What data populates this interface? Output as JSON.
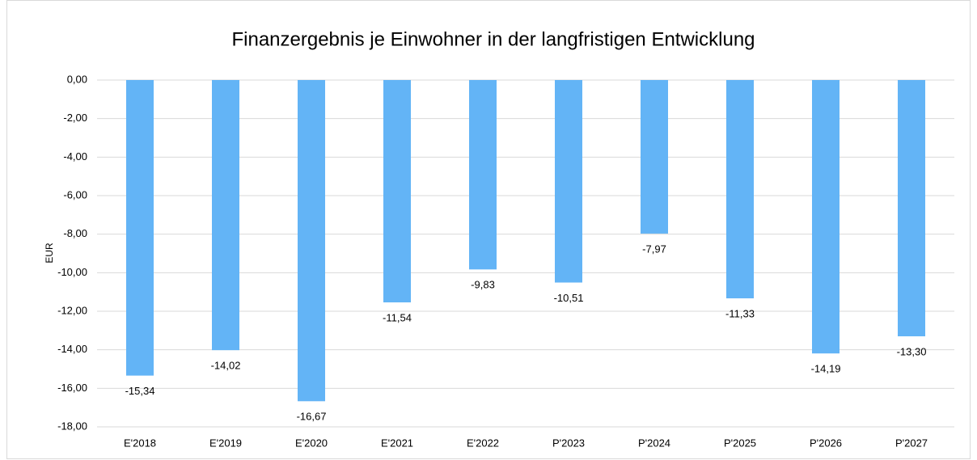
{
  "chart_data": {
    "type": "bar",
    "title": "Finanzergebnis je Einwohner in der langfristigen Entwicklung",
    "y_label": "EUR",
    "categories": [
      "E'2018",
      "E'2019",
      "E'2020",
      "E'2021",
      "E'2022",
      "P'2023",
      "P'2024",
      "P'2025",
      "P'2026",
      "P'2027"
    ],
    "values": [
      -15.34,
      -14.02,
      -16.67,
      -11.54,
      -9.83,
      -10.51,
      -7.97,
      -11.33,
      -14.19,
      -13.3
    ],
    "value_labels": [
      "-15,34",
      "-14,02",
      "-16,67",
      "-11,54",
      "-9,83",
      "-10,51",
      "-7,97",
      "-11,33",
      "-14,19",
      "-13,30"
    ],
    "color": "#63b4f6",
    "ylim": [
      -18,
      0
    ],
    "yticks": [
      {
        "value": 0,
        "label": "0,00"
      },
      {
        "value": -2,
        "label": "-2,00"
      },
      {
        "value": -4,
        "label": "-4,00"
      },
      {
        "value": -6,
        "label": "-6,00"
      },
      {
        "value": -8,
        "label": "-8,00"
      },
      {
        "value": -10,
        "label": "-10,00"
      },
      {
        "value": -12,
        "label": "-12,00"
      },
      {
        "value": -14,
        "label": "-14,00"
      },
      {
        "value": -16,
        "label": "-16,00"
      },
      {
        "value": -18,
        "label": "-18,00"
      }
    ],
    "grid": true
  }
}
